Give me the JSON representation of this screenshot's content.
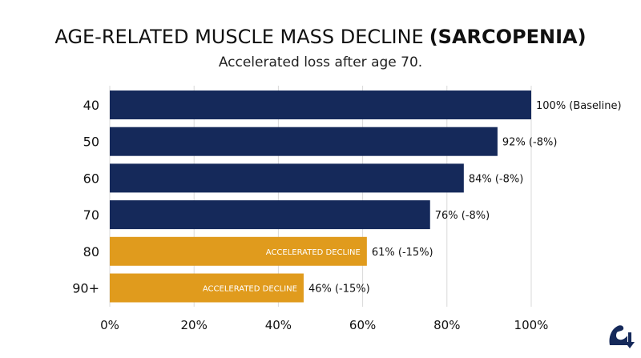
{
  "chart_data": {
    "type": "bar",
    "orientation": "horizontal",
    "title_main": "AGE-RELATED MUSCLE MASS DECLINE",
    "title_bold": "(SARCOPENIA)",
    "subtitle": "Accelerated loss after age 70.",
    "categories": [
      "40",
      "50",
      "60",
      "70",
      "80",
      "90+"
    ],
    "values": [
      100,
      92,
      84,
      76,
      61,
      46
    ],
    "value_labels": [
      "100% (Baseline)",
      "92% (-8%)",
      "84% (-8%)",
      "76% (-8%)",
      "61% (-15%)",
      "46% (-15%)"
    ],
    "inner_labels": [
      "",
      "",
      "",
      "",
      "ACCELERATED DECLINE",
      "ACCELERATED DECLINE"
    ],
    "bar_colors": [
      "#15295a",
      "#15295a",
      "#15295a",
      "#15295a",
      "#e09b1d",
      "#e09b1d"
    ],
    "xlim": [
      0,
      100
    ],
    "xticks": [
      0,
      20,
      40,
      60,
      80,
      100
    ],
    "xtick_labels": [
      "0%",
      "20%",
      "40%",
      "60%",
      "80%",
      "100%"
    ],
    "grid": "vertical"
  },
  "logo": {
    "icon": "flexed-arm-down-arrow-icon",
    "color": "#15295a"
  }
}
